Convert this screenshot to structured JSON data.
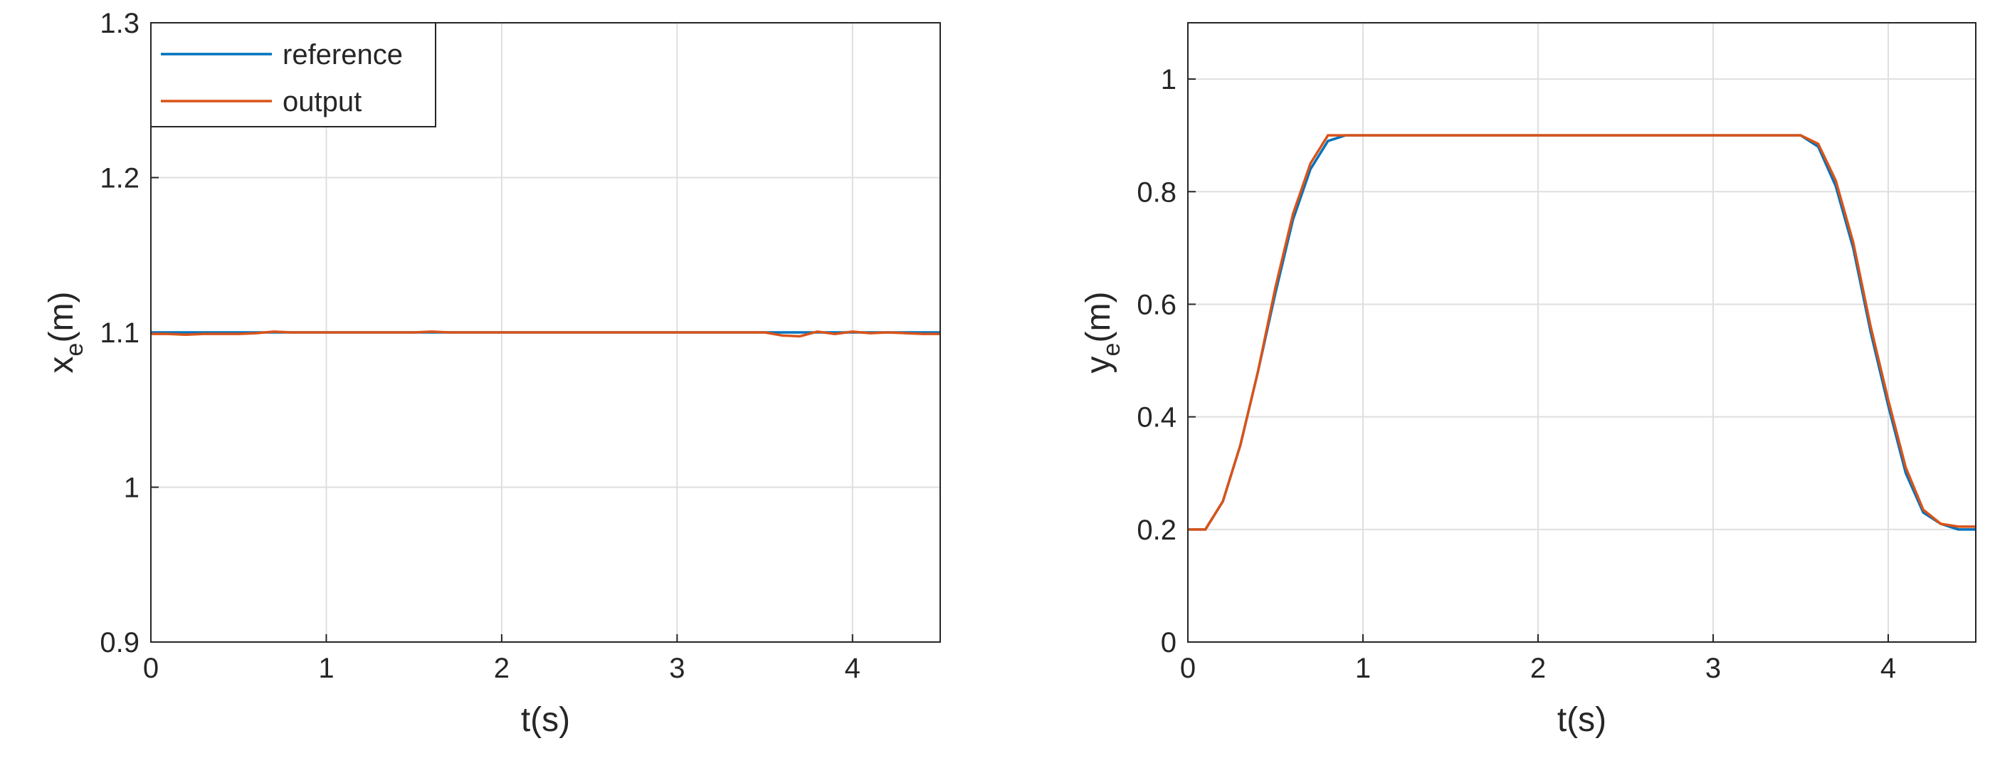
{
  "chart_data": [
    {
      "type": "line",
      "xlabel": "t(s)",
      "ylabel": [
        "x",
        "e",
        "(m)"
      ],
      "xlim": [
        0,
        4.5
      ],
      "ylim": [
        0.9,
        1.3
      ],
      "xticks": [
        0,
        1,
        2,
        3,
        4
      ],
      "yticks": [
        0.9,
        1,
        1.1,
        1.2,
        1.3
      ],
      "grid": true,
      "legend": "upper left",
      "x": [
        0,
        0.1,
        0.2,
        0.3,
        0.4,
        0.5,
        0.6,
        0.7,
        0.8,
        0.9,
        1,
        1.1,
        1.2,
        1.3,
        1.4,
        1.5,
        1.6,
        1.7,
        1.8,
        1.9,
        2,
        2.1,
        2.2,
        2.3,
        2.4,
        2.5,
        2.6,
        2.7,
        2.8,
        2.9,
        3,
        3.1,
        3.2,
        3.3,
        3.4,
        3.5,
        3.6,
        3.7,
        3.8,
        3.9,
        4,
        4.1,
        4.2,
        4.3,
        4.4,
        4.5
      ],
      "series": [
        {
          "name": "reference",
          "color": "#0072bd",
          "values": [
            1.1,
            1.1,
            1.1,
            1.1,
            1.1,
            1.1,
            1.1,
            1.1,
            1.1,
            1.1,
            1.1,
            1.1,
            1.1,
            1.1,
            1.1,
            1.1,
            1.1,
            1.1,
            1.1,
            1.1,
            1.1,
            1.1,
            1.1,
            1.1,
            1.1,
            1.1,
            1.1,
            1.1,
            1.1,
            1.1,
            1.1,
            1.1,
            1.1,
            1.1,
            1.1,
            1.1,
            1.1,
            1.1,
            1.1,
            1.1,
            1.1,
            1.1,
            1.1,
            1.1,
            1.1,
            1.1
          ]
        },
        {
          "name": "output",
          "color": "#d95319",
          "values": [
            1.099,
            1.099,
            1.0985,
            1.099,
            1.099,
            1.099,
            1.0995,
            1.1005,
            1.1,
            1.1,
            1.1,
            1.1,
            1.1,
            1.1,
            1.1,
            1.1,
            1.1005,
            1.1,
            1.1,
            1.1,
            1.1,
            1.1,
            1.1,
            1.1,
            1.1,
            1.1,
            1.1,
            1.1,
            1.1,
            1.1,
            1.1,
            1.1,
            1.1,
            1.1,
            1.1,
            1.1,
            1.098,
            1.0975,
            1.1005,
            1.099,
            1.1005,
            1.0995,
            1.1,
            1.0995,
            1.099,
            1.099
          ]
        }
      ]
    },
    {
      "type": "line",
      "xlabel": "t(s)",
      "ylabel": [
        "y",
        "e",
        "(m)"
      ],
      "xlim": [
        0,
        4.5
      ],
      "ylim": [
        0,
        1.1
      ],
      "xticks": [
        0,
        1,
        2,
        3,
        4
      ],
      "yticks": [
        0,
        0.2,
        0.4,
        0.6,
        0.8,
        1
      ],
      "grid": true,
      "x": [
        0,
        0.1,
        0.2,
        0.3,
        0.4,
        0.5,
        0.6,
        0.7,
        0.8,
        0.9,
        1,
        1.1,
        1.2,
        1.3,
        1.4,
        1.5,
        1.6,
        1.7,
        1.8,
        1.9,
        2,
        2.1,
        2.2,
        2.3,
        2.4,
        2.5,
        2.6,
        2.7,
        2.8,
        2.9,
        3,
        3.1,
        3.2,
        3.3,
        3.4,
        3.5,
        3.6,
        3.7,
        3.8,
        3.9,
        4,
        4.1,
        4.2,
        4.3,
        4.4,
        4.5
      ],
      "series": [
        {
          "name": "reference",
          "color": "#0072bd",
          "values": [
            0.2,
            0.2,
            0.25,
            0.35,
            0.48,
            0.62,
            0.75,
            0.84,
            0.89,
            0.9,
            0.9,
            0.9,
            0.9,
            0.9,
            0.9,
            0.9,
            0.9,
            0.9,
            0.9,
            0.9,
            0.9,
            0.9,
            0.9,
            0.9,
            0.9,
            0.9,
            0.9,
            0.9,
            0.9,
            0.9,
            0.9,
            0.9,
            0.9,
            0.9,
            0.9,
            0.9,
            0.88,
            0.81,
            0.7,
            0.55,
            0.42,
            0.3,
            0.23,
            0.21,
            0.2,
            0.2
          ]
        },
        {
          "name": "output",
          "color": "#d95319",
          "values": [
            0.2,
            0.2,
            0.25,
            0.35,
            0.48,
            0.63,
            0.76,
            0.85,
            0.9,
            0.9,
            0.9,
            0.9,
            0.9,
            0.9,
            0.9,
            0.9,
            0.9,
            0.9,
            0.9,
            0.9,
            0.9,
            0.9,
            0.9,
            0.9,
            0.9,
            0.9,
            0.9,
            0.9,
            0.9,
            0.9,
            0.9,
            0.9,
            0.9,
            0.9,
            0.9,
            0.9,
            0.885,
            0.82,
            0.71,
            0.56,
            0.43,
            0.31,
            0.235,
            0.21,
            0.205,
            0.205
          ]
        }
      ]
    }
  ]
}
